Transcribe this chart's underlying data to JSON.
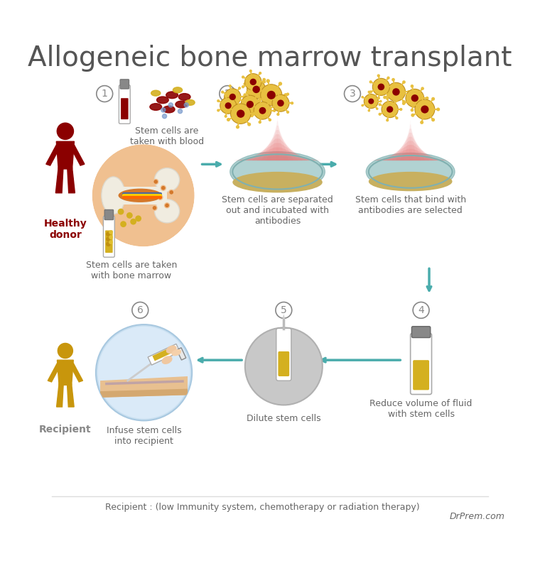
{
  "title": "Allogeneic bone marrow transplant",
  "title_fontsize": 28,
  "title_color": "#555555",
  "background_color": "#ffffff",
  "footer_text": "Recipient : (low Immunity system, chemotherapy or radiation therapy)",
  "footer_brand": "DrPrem.com",
  "healthy_donor_label": "Healthy\ndonor",
  "recipient_label": "Recipient",
  "donor_color": "#8B0000",
  "recipient_color": "#C8960C",
  "step1_text1": "Stem cells are\ntaken with blood",
  "step1_text2": "Stem cells are taken\nwith bone marrow",
  "step2_text": "Stem cells are separated\nout and incubated with\nantibodies",
  "step3_text": "Stem cells that bind with\nantibodies are selected",
  "step4_text": "Reduce volume of fluid\nwith stem cells",
  "step5_text": "Dilute stem cells",
  "step6_text": "Infuse stem cells\ninto recipient",
  "text_color": "#666666",
  "text_fontsize": 9,
  "circle_number_color": "#888888",
  "vial_blood_color": "#8B0000",
  "vial_cap_color": "#888888",
  "teal_arrow_color": "#4AACAC"
}
